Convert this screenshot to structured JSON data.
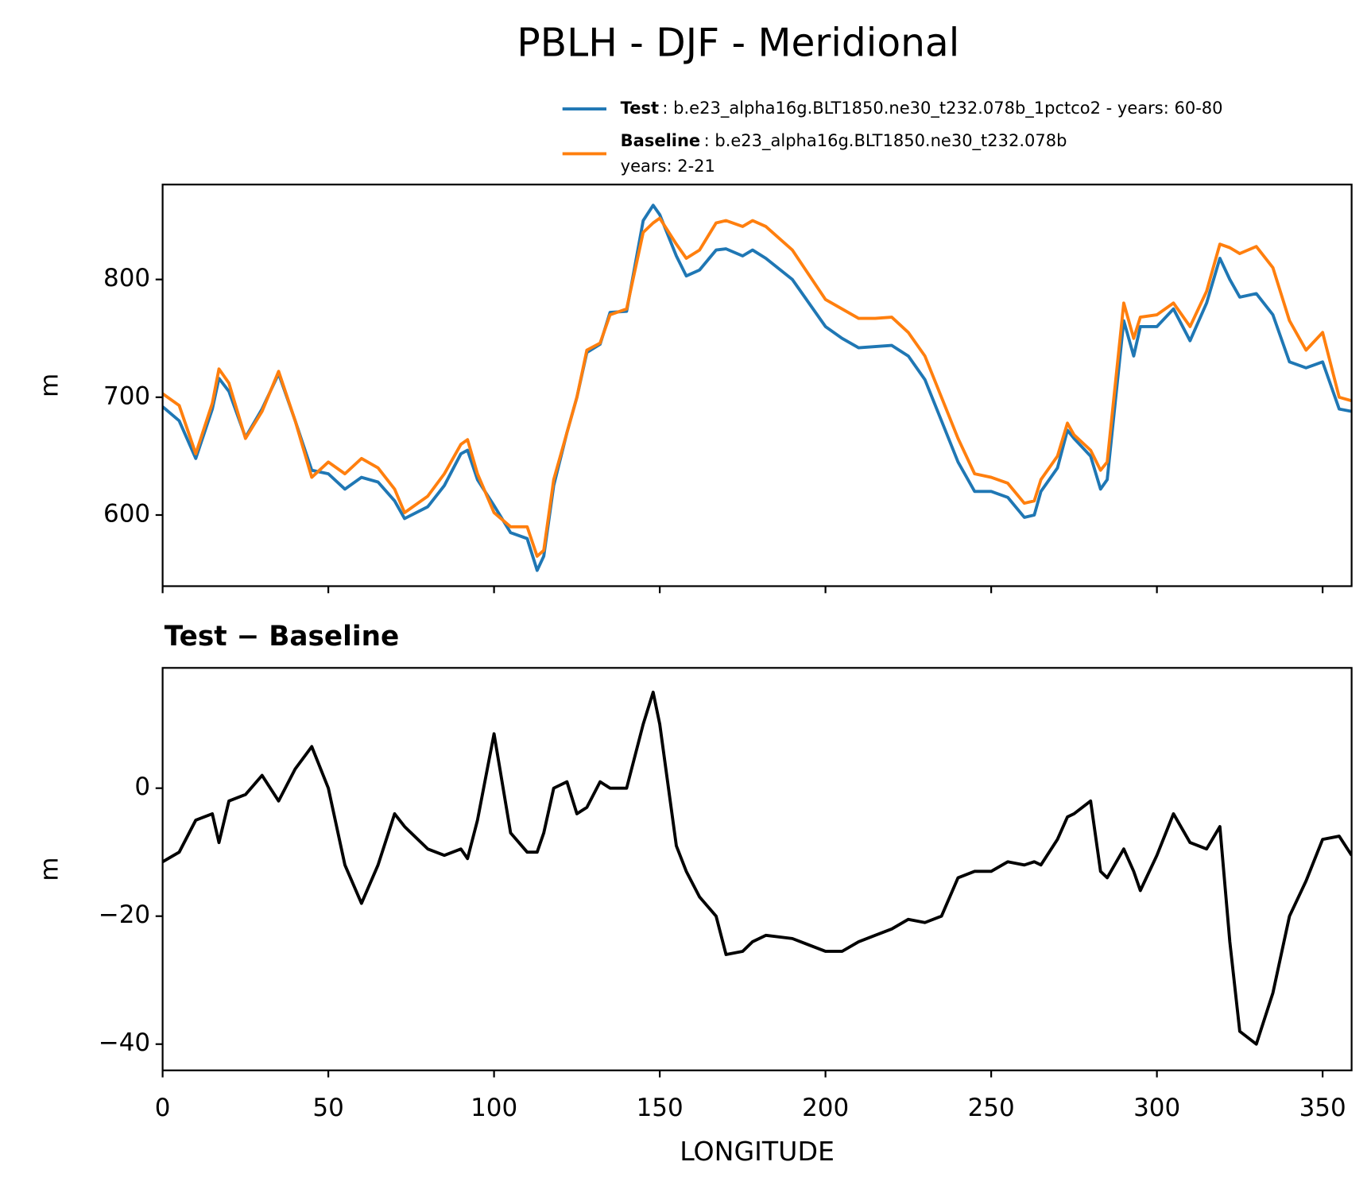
{
  "chart_data": [
    {
      "type": "line",
      "title": "PBLH - DJF - Meridional",
      "ylabel": "m",
      "x": [
        0,
        5,
        10,
        15,
        17,
        20,
        25,
        30,
        35,
        40,
        45,
        50,
        55,
        60,
        65,
        70,
        73,
        80,
        85,
        90,
        92,
        95,
        100,
        105,
        110,
        113,
        115,
        118,
        122,
        125,
        128,
        132,
        135,
        140,
        145,
        148,
        150,
        155,
        158,
        162,
        167,
        170,
        175,
        178,
        182,
        190,
        200,
        205,
        210,
        215,
        220,
        225,
        230,
        235,
        240,
        245,
        250,
        255,
        260,
        263,
        265,
        270,
        273,
        275,
        280,
        283,
        285,
        290,
        293,
        295,
        300,
        305,
        310,
        315,
        319,
        322,
        325,
        330,
        335,
        340,
        345,
        350,
        355,
        358.75
      ],
      "series": [
        {
          "name": "Test",
          "description": [
            ": b.e23_alpha16g.BLT1850.ne30_t232.078b_1pctco2 - years: 60-80"
          ],
          "color": "#1f77b4",
          "values": [
            692,
            680,
            648,
            690,
            716,
            705,
            666,
            690,
            720,
            680,
            638,
            635,
            622,
            632,
            628,
            612,
            597,
            607,
            625,
            652,
            655,
            630,
            608,
            585,
            580,
            553,
            565,
            625,
            670,
            700,
            738,
            745,
            772,
            773,
            850,
            863,
            855,
            820,
            803,
            808,
            825,
            826,
            820,
            825,
            818,
            800,
            760,
            750,
            742,
            743,
            744,
            735,
            715,
            680,
            645,
            620,
            620,
            615,
            598,
            600,
            620,
            640,
            672,
            665,
            650,
            622,
            630,
            765,
            735,
            760,
            760,
            775,
            748,
            780,
            818,
            800,
            785,
            788,
            770,
            730,
            725,
            730,
            690,
            688
          ]
        },
        {
          "name": "Baseline",
          "description": [
            ": b.e23_alpha16g.BLT1850.ne30_t232.078b",
            "years: 2-21"
          ],
          "color": "#ff7f0e",
          "values": [
            703,
            693,
            652,
            695,
            724,
            712,
            665,
            688,
            722,
            680,
            632,
            645,
            635,
            648,
            640,
            622,
            602,
            616,
            635,
            660,
            664,
            635,
            602,
            590,
            590,
            565,
            570,
            630,
            670,
            700,
            740,
            746,
            770,
            775,
            840,
            848,
            852,
            830,
            818,
            825,
            848,
            850,
            845,
            850,
            845,
            825,
            783,
            775,
            767,
            767,
            768,
            755,
            735,
            700,
            665,
            635,
            632,
            627,
            610,
            612,
            630,
            650,
            678,
            668,
            655,
            638,
            645,
            780,
            750,
            768,
            770,
            780,
            760,
            790,
            830,
            827,
            822,
            828,
            810,
            765,
            740,
            755,
            700,
            697
          ]
        }
      ],
      "xlim": [
        0,
        358.75
      ],
      "xticks": [
        0,
        50,
        100,
        150,
        200,
        250,
        300,
        350
      ],
      "ylim": [
        539.6,
        880.6
      ],
      "yticks": [
        600,
        700,
        800
      ]
    },
    {
      "type": "line",
      "title": "Test − Baseline",
      "ylabel": "m",
      "xlabel": "LONGITUDE",
      "color": "#000000",
      "x": [
        0,
        5,
        10,
        15,
        17,
        20,
        25,
        30,
        35,
        40,
        45,
        50,
        55,
        60,
        65,
        70,
        73,
        80,
        85,
        90,
        92,
        95,
        100,
        105,
        110,
        113,
        115,
        118,
        122,
        125,
        128,
        132,
        135,
        140,
        145,
        148,
        150,
        155,
        158,
        162,
        167,
        170,
        175,
        178,
        182,
        190,
        200,
        205,
        210,
        215,
        220,
        225,
        230,
        235,
        240,
        245,
        250,
        255,
        260,
        263,
        265,
        270,
        273,
        275,
        280,
        283,
        285,
        290,
        293,
        295,
        300,
        305,
        310,
        315,
        319,
        322,
        325,
        330,
        335,
        340,
        345,
        350,
        355,
        358.75
      ],
      "values": [
        -11.5,
        -10,
        -5,
        -4,
        -8.5,
        -2,
        -1,
        2,
        -2,
        3,
        6.5,
        0,
        -12,
        -18,
        -12,
        -4,
        -6,
        -9.5,
        -10.5,
        -9.5,
        -11,
        -5,
        8.5,
        -7,
        -10,
        -10,
        -7,
        0,
        1,
        -4,
        -3,
        1,
        0,
        0,
        10,
        15,
        10,
        -9,
        -13,
        -17,
        -20,
        -26,
        -25.5,
        -24,
        -23,
        -23.5,
        -25.5,
        -25.5,
        -24,
        -23,
        -22,
        -20.5,
        -21,
        -20,
        -14,
        -13,
        -13,
        -11.5,
        -12,
        -11.5,
        -12,
        -8,
        -4.5,
        -4,
        -2,
        -13,
        -14,
        -9.5,
        -13,
        -16,
        -10.5,
        -4,
        -8.5,
        -9.5,
        -6,
        -24,
        -38,
        -40,
        -32,
        -20,
        -14.5,
        -8,
        -7.5,
        -10.5
      ],
      "xlim": [
        0,
        358.75
      ],
      "xticks": [
        0,
        50,
        100,
        150,
        200,
        250,
        300,
        350
      ],
      "ylim": [
        -44.1,
        18.8
      ],
      "yticks": [
        {
          "value": -40,
          "label": "−40"
        },
        {
          "value": -20,
          "label": "−20"
        },
        0
      ]
    }
  ]
}
